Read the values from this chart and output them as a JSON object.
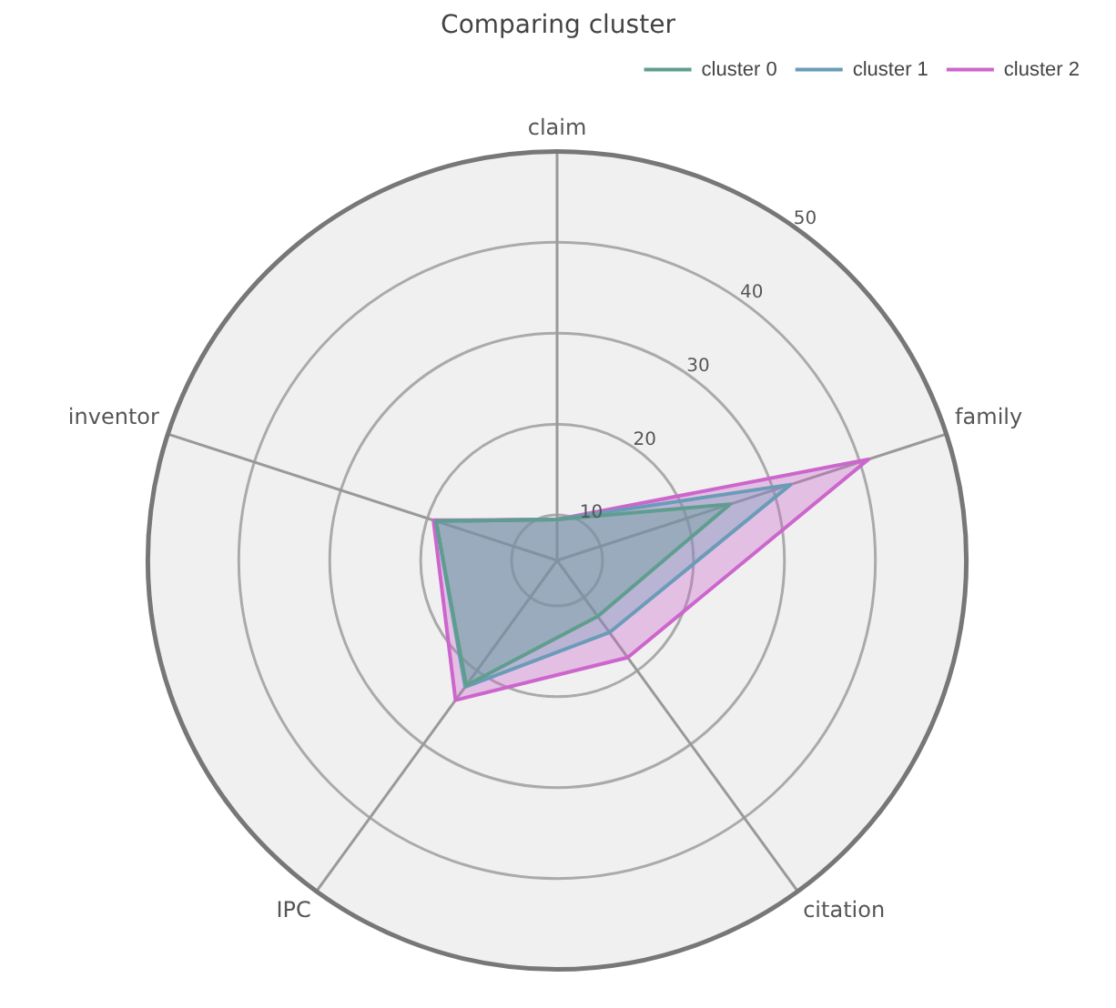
{
  "chart_data": {
    "type": "radar",
    "title": "Comparing cluster",
    "categories": [
      "claim",
      "family",
      "citation",
      "IPC",
      "inventor"
    ],
    "series": [
      {
        "name": "cluster 0",
        "color": "#5f9e8f",
        "values": [
          9.5,
          25,
          12.6,
          22,
          19
        ]
      },
      {
        "name": "cluster 1",
        "color": "#6a9cb8",
        "values": [
          9.5,
          32,
          14.8,
          22.2,
          19
        ]
      },
      {
        "name": "cluster 2",
        "color": "#cc66cc",
        "values": [
          9.5,
          41,
          18.2,
          24,
          19.3
        ]
      }
    ],
    "ylim": [
      5,
      50
    ],
    "yticks": [
      10,
      20,
      30,
      40,
      50
    ],
    "grid": true,
    "legend": "top right",
    "marker": "none",
    "line_style": "solid"
  }
}
